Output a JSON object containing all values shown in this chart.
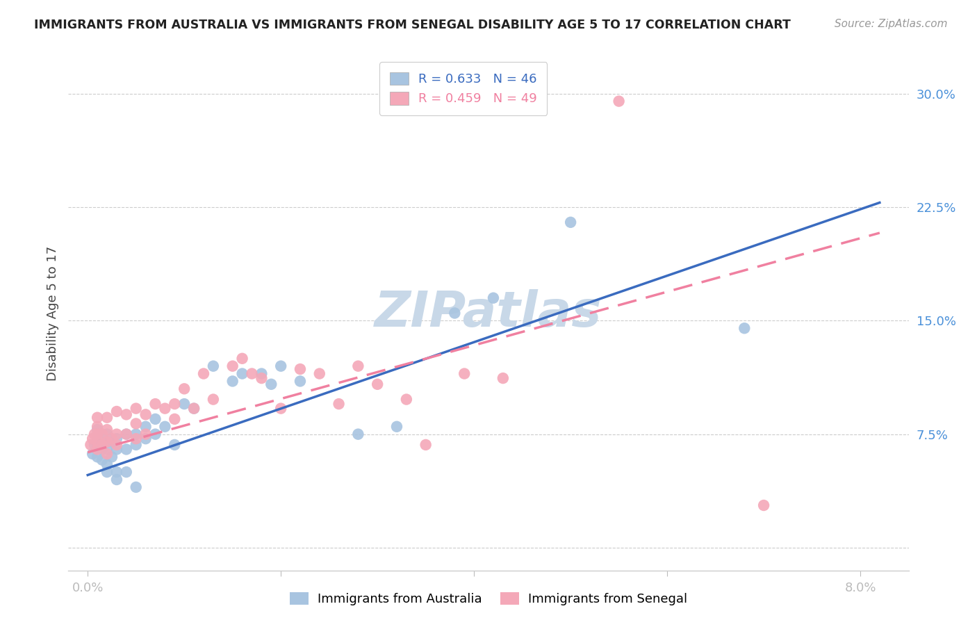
{
  "title": "IMMIGRANTS FROM AUSTRALIA VS IMMIGRANTS FROM SENEGAL DISABILITY AGE 5 TO 17 CORRELATION CHART",
  "source": "Source: ZipAtlas.com",
  "ylabel": "Disability Age 5 to 17",
  "y_ticks": [
    0.0,
    0.075,
    0.15,
    0.225,
    0.3
  ],
  "y_tick_labels": [
    "",
    "7.5%",
    "15.0%",
    "22.5%",
    "30.0%"
  ],
  "x_ticks": [
    0.0,
    0.02,
    0.04,
    0.06,
    0.08
  ],
  "x_tick_labels": [
    "0.0%",
    "",
    "",
    "",
    "8.0%"
  ],
  "xlim": [
    -0.002,
    0.085
  ],
  "ylim": [
    -0.015,
    0.325
  ],
  "australia_R": 0.633,
  "australia_N": 46,
  "senegal_R": 0.459,
  "senegal_N": 49,
  "australia_color": "#a8c4e0",
  "senegal_color": "#f4a8b8",
  "australia_line_color": "#3a6bbf",
  "senegal_line_color": "#f080a0",
  "watermark": "ZIPatlas",
  "watermark_color": "#c8d8e8",
  "aus_line_x0": 0.0,
  "aus_line_y0": 0.048,
  "aus_line_x1": 0.082,
  "aus_line_y1": 0.228,
  "sen_line_x0": 0.0,
  "sen_line_y0": 0.063,
  "sen_line_x1": 0.082,
  "sen_line_y1": 0.208,
  "australia_points_x": [
    0.0005,
    0.0007,
    0.001,
    0.001,
    0.001,
    0.001,
    0.0015,
    0.0015,
    0.002,
    0.002,
    0.002,
    0.002,
    0.002,
    0.0025,
    0.0025,
    0.003,
    0.003,
    0.003,
    0.003,
    0.004,
    0.004,
    0.004,
    0.005,
    0.005,
    0.005,
    0.006,
    0.006,
    0.007,
    0.007,
    0.008,
    0.009,
    0.01,
    0.011,
    0.013,
    0.015,
    0.016,
    0.018,
    0.019,
    0.02,
    0.022,
    0.028,
    0.032,
    0.038,
    0.042,
    0.05,
    0.068
  ],
  "australia_points_y": [
    0.062,
    0.068,
    0.06,
    0.068,
    0.072,
    0.078,
    0.058,
    0.065,
    0.055,
    0.065,
    0.07,
    0.075,
    0.05,
    0.06,
    0.07,
    0.065,
    0.072,
    0.05,
    0.045,
    0.065,
    0.075,
    0.05,
    0.068,
    0.075,
    0.04,
    0.072,
    0.08,
    0.075,
    0.085,
    0.08,
    0.068,
    0.095,
    0.092,
    0.12,
    0.11,
    0.115,
    0.115,
    0.108,
    0.12,
    0.11,
    0.075,
    0.08,
    0.155,
    0.165,
    0.215,
    0.145
  ],
  "senegal_points_x": [
    0.0003,
    0.0005,
    0.0007,
    0.001,
    0.001,
    0.001,
    0.001,
    0.001,
    0.0015,
    0.0015,
    0.002,
    0.002,
    0.002,
    0.002,
    0.0025,
    0.003,
    0.003,
    0.003,
    0.004,
    0.004,
    0.005,
    0.005,
    0.005,
    0.006,
    0.006,
    0.007,
    0.008,
    0.009,
    0.009,
    0.01,
    0.011,
    0.012,
    0.013,
    0.015,
    0.016,
    0.017,
    0.018,
    0.02,
    0.022,
    0.024,
    0.026,
    0.028,
    0.03,
    0.033,
    0.035,
    0.039,
    0.043,
    0.055,
    0.07
  ],
  "senegal_points_y": [
    0.068,
    0.072,
    0.075,
    0.065,
    0.07,
    0.075,
    0.08,
    0.086,
    0.068,
    0.075,
    0.062,
    0.07,
    0.078,
    0.086,
    0.072,
    0.068,
    0.075,
    0.09,
    0.075,
    0.088,
    0.072,
    0.082,
    0.092,
    0.075,
    0.088,
    0.095,
    0.092,
    0.085,
    0.095,
    0.105,
    0.092,
    0.115,
    0.098,
    0.12,
    0.125,
    0.115,
    0.112,
    0.092,
    0.118,
    0.115,
    0.095,
    0.12,
    0.108,
    0.098,
    0.068,
    0.115,
    0.112,
    0.295,
    0.028
  ]
}
